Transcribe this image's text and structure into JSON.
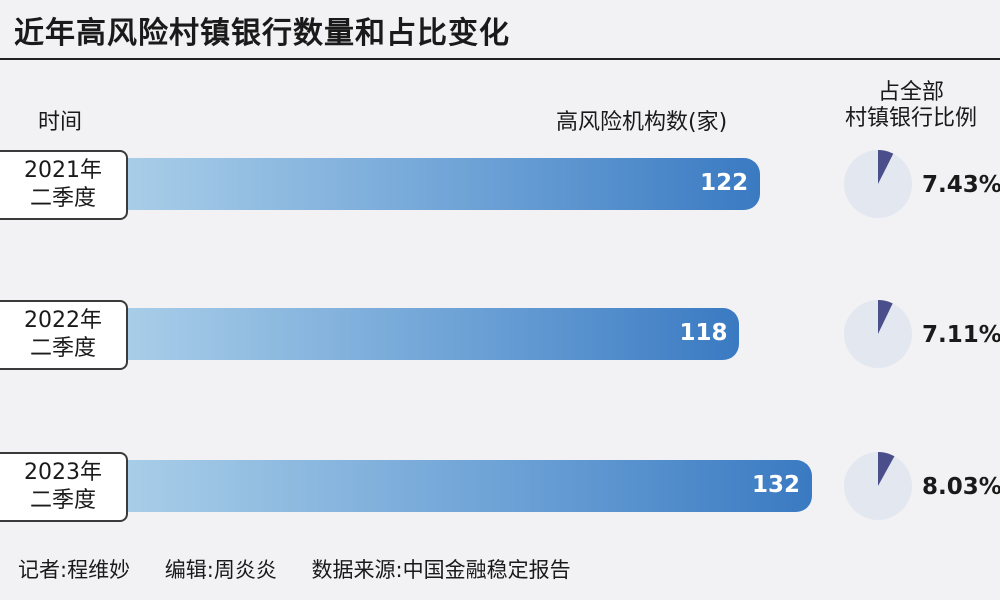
{
  "title": "近年高风险村镇银行数量和占比变化",
  "columns": {
    "period": "时间",
    "count": "高风险机构数(家)",
    "share_line1": "占全部",
    "share_line2": "村镇银行比例"
  },
  "chart_data": {
    "type": "bar",
    "title": "近年高风险村镇银行数量和占比变化",
    "categories": [
      {
        "year": "2021年",
        "quarter": "二季度"
      },
      {
        "year": "2022年",
        "quarter": "二季度"
      },
      {
        "year": "2023年",
        "quarter": "二季度"
      }
    ],
    "series": [
      {
        "name": "高风险机构数(家)",
        "values": [
          122,
          118,
          132
        ]
      },
      {
        "name": "占全部村镇银行比例",
        "values": [
          7.43,
          7.11,
          8.03
        ],
        "labels": [
          "7.43%",
          "7.11%",
          "8.03%"
        ]
      }
    ],
    "colors": {
      "bar_light": "#a8cde8",
      "bar_dark": "#3a7ac2",
      "pie_slice": "#4a4f8c",
      "pie_base": "#e3e7f0"
    }
  },
  "footer": {
    "reporter": "记者:程维妙",
    "editor": "编辑:周炎炎",
    "source": "数据来源:中国金融稳定报告"
  }
}
